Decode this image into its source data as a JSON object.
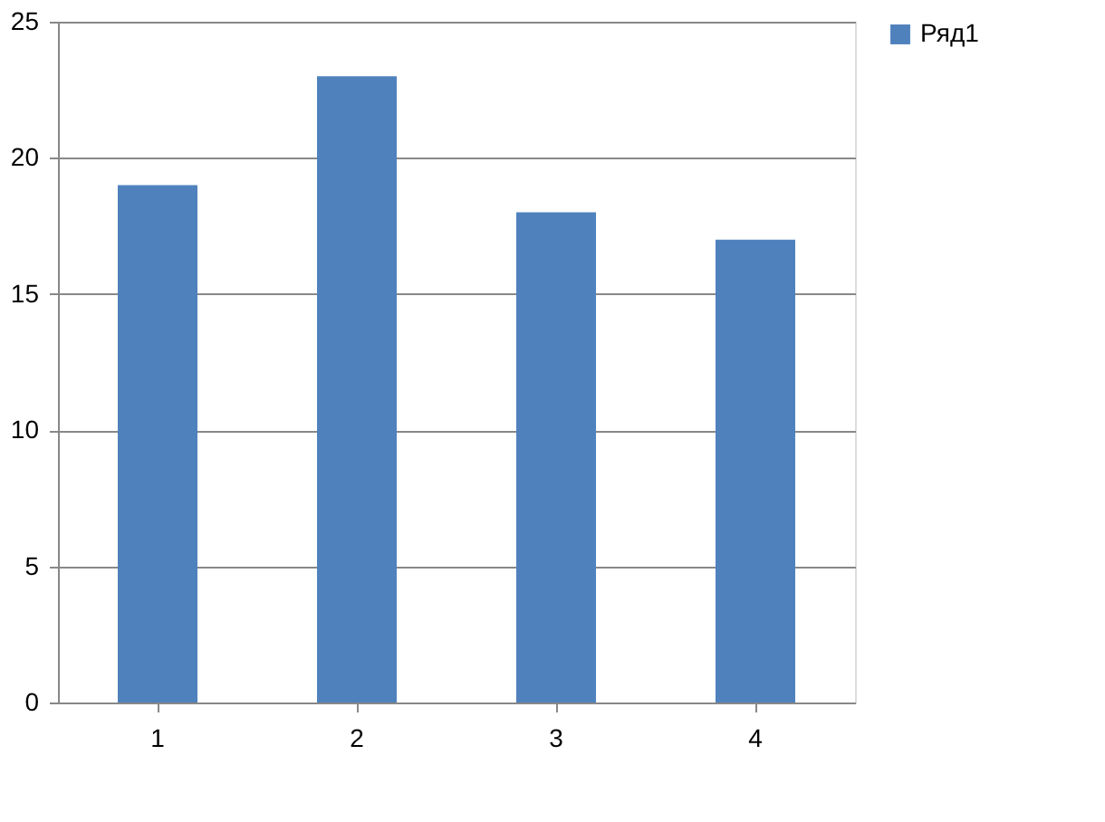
{
  "chart_data": {
    "type": "bar",
    "categories": [
      "1",
      "2",
      "3",
      "4"
    ],
    "series": [
      {
        "name": "Ряд1",
        "color": "#4f81bd",
        "values": [
          19,
          23,
          18,
          17
        ]
      }
    ],
    "ylim": [
      0,
      25
    ],
    "yticks": [
      0,
      5,
      10,
      15,
      20,
      25
    ],
    "grid": "y",
    "legend": "right"
  }
}
